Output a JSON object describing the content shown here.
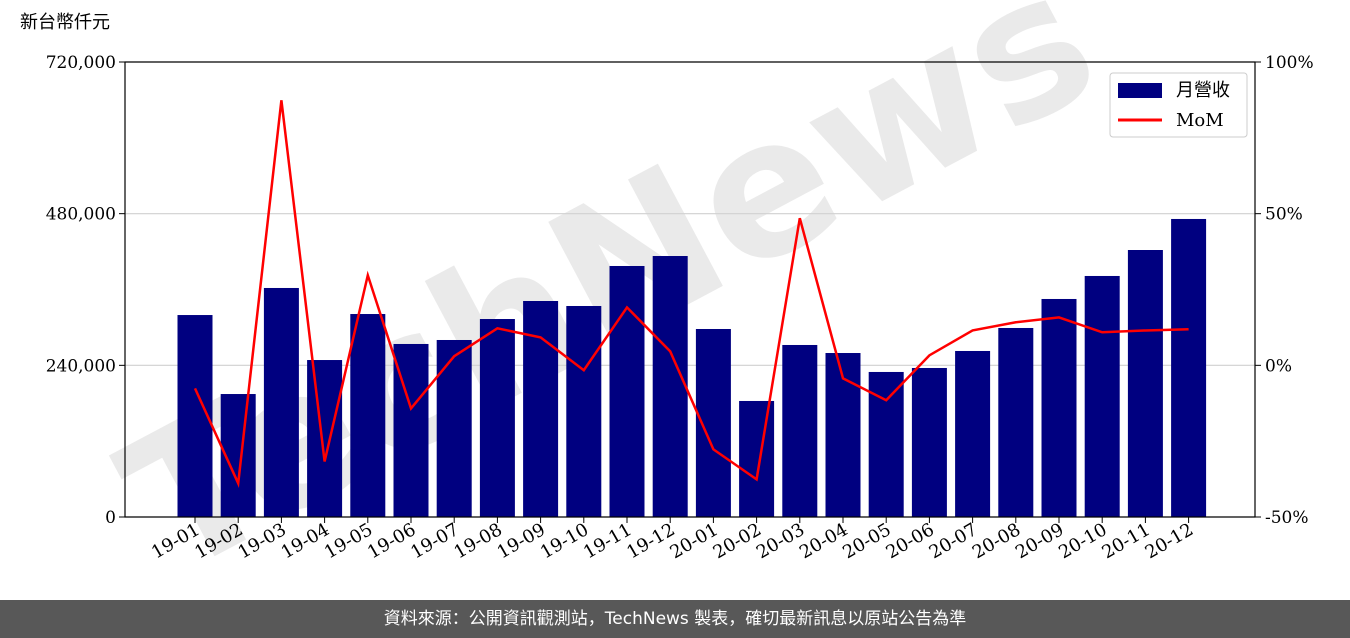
{
  "chart_data": {
    "type": "bar-line",
    "y_label": "新台幣仟元",
    "watermark": "TechNews",
    "categories": [
      "19-01",
      "19-02",
      "19-03",
      "19-04",
      "19-05",
      "19-06",
      "19-07",
      "19-08",
      "19-09",
      "19-10",
      "19-11",
      "19-12",
      "20-01",
      "20-02",
      "20-03",
      "20-04",
      "20-05",
      "20-06",
      "20-07",
      "20-08",
      "20-09",
      "20-10",
      "20-11",
      "20-12"
    ],
    "series": [
      {
        "name": "月營收",
        "color": "#000080",
        "type": "bar",
        "values": [
          319600,
          194600,
          362400,
          248400,
          321200,
          273800,
          280100,
          313300,
          341800,
          333900,
          397200,
          413000,
          297500,
          183600,
          272200,
          259500,
          229500,
          235800,
          262700,
          299100,
          345000,
          381400,
          422500,
          471600
        ]
      },
      {
        "name": "MoM",
        "color": "#ff0000",
        "type": "line",
        "axis": "y2",
        "values": [
          -7.6,
          -38.9,
          87.4,
          -31.7,
          29.7,
          -14.2,
          3,
          12.2,
          9.2,
          -1.6,
          19.1,
          4.6,
          -27.7,
          -37.6,
          48.5,
          -4.3,
          -11.5,
          3.3,
          11.5,
          14.2,
          15.8,
          10.9,
          11.5,
          11.9
        ]
      }
    ],
    "ylim": [
      0,
      720000
    ],
    "yticks": [
      0,
      {
        "value": 240000,
        "label": "240,000"
      },
      {
        "value": 480000,
        "label": "480,000"
      },
      {
        "value": 720000,
        "label": "720,000"
      }
    ],
    "y2lim": [
      -50,
      100
    ],
    "y2ticks": [
      {
        "value": -50,
        "label": "-50%"
      },
      {
        "value": 0,
        "label": "0%"
      },
      {
        "value": 50,
        "label": "50%"
      },
      {
        "value": 100,
        "label": "100%"
      }
    ],
    "grid": true,
    "legend": "upper right",
    "footer": "資料來源：公開資訊觀測站，TechNews 製表，確切最新訊息以原站公告為準"
  }
}
